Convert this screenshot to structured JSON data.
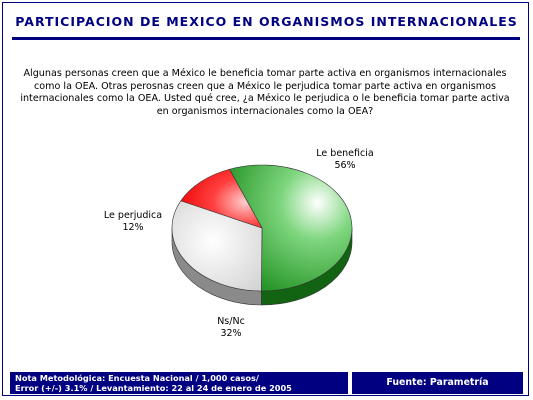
{
  "title": "PARTICIPACION DE MEXICO EN ORGANISMOS INTERNACIONALES",
  "question": "Algunas personas creen que a México le beneficia tomar parte activa en organismos internacionales como la OEA. Otras perosnas creen que a México le perjudica tomar parte activa en organismos internacionales como la OEA. Usted qué cree, ¿a México le perjudica o le beneficia tomar parte activa en organismos internacionales como la OEA?",
  "chart_data": {
    "type": "pie",
    "slices": [
      {
        "label": "Le beneficia",
        "value": 56,
        "value_text": "56%",
        "color": "#2faa2f"
      },
      {
        "label": "Ns/Nc",
        "value": 32,
        "value_text": "32%",
        "color": "#e4e4e4"
      },
      {
        "label": "Le perjudica",
        "value": 12,
        "value_text": "12%",
        "color": "#ff1a1a"
      }
    ]
  },
  "footer": {
    "note_line1": "Nota Metodológica: Encuesta Nacional / 1,000 casos/",
    "note_line2": "Error  (+/-)  3.1% / Levantamiento: 22 al 24 de enero de 2005",
    "source": "Fuente: Parametría"
  }
}
